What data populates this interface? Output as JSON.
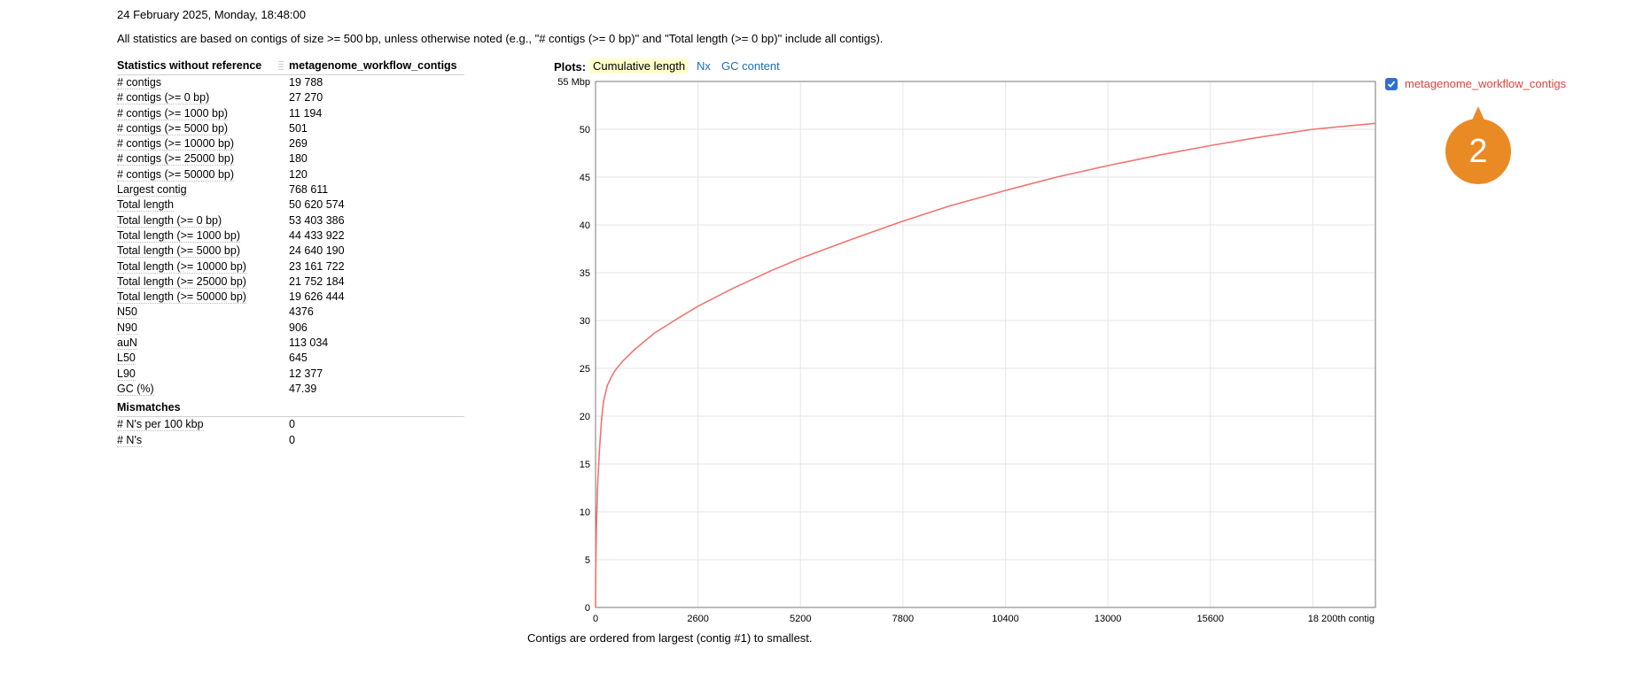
{
  "header": {
    "date": "24 February 2025, Monday, 18:48:00",
    "note": "All statistics are based on contigs of size >= 500 bp, unless otherwise noted (e.g., \"# contigs (>= 0 bp)\" and \"Total length (>= 0 bp)\" include all contigs)."
  },
  "stats": {
    "col1_header": "Statistics without reference",
    "col2_header": "metagenome_workflow_contigs",
    "rows": [
      {
        "label": "# contigs",
        "value": "19 788"
      },
      {
        "label": "# contigs (>= 0 bp)",
        "value": "27 270"
      },
      {
        "label": "# contigs (>= 1000 bp)",
        "value": "11 194"
      },
      {
        "label": "# contigs (>= 5000 bp)",
        "value": "501"
      },
      {
        "label": "# contigs (>= 10000 bp)",
        "value": "269"
      },
      {
        "label": "# contigs (>= 25000 bp)",
        "value": "180"
      },
      {
        "label": "# contigs (>= 50000 bp)",
        "value": "120"
      },
      {
        "label": "Largest contig",
        "value": "768 611"
      },
      {
        "label": "Total length",
        "value": "50 620 574"
      },
      {
        "label": "Total length (>= 0 bp)",
        "value": "53 403 386"
      },
      {
        "label": "Total length (>= 1000 bp)",
        "value": "44 433 922"
      },
      {
        "label": "Total length (>= 5000 bp)",
        "value": "24 640 190"
      },
      {
        "label": "Total length (>= 10000 bp)",
        "value": "23 161 722"
      },
      {
        "label": "Total length (>= 25000 bp)",
        "value": "21 752 184"
      },
      {
        "label": "Total length (>= 50000 bp)",
        "value": "19 626 444"
      },
      {
        "label": "N50",
        "value": "4376"
      },
      {
        "label": "N90",
        "value": "906"
      },
      {
        "label": "auN",
        "value": "113 034"
      },
      {
        "label": "L50",
        "value": "645"
      },
      {
        "label": "L90",
        "value": "12 377"
      },
      {
        "label": "GC (%)",
        "value": "47.39"
      }
    ],
    "section2_header": "Mismatches",
    "section2_rows": [
      {
        "label": "# N's per 100 kbp",
        "value": "0"
      },
      {
        "label": "# N's",
        "value": "0"
      }
    ]
  },
  "plots": {
    "label": "Plots:",
    "tabs": [
      {
        "label": "Cumulative length",
        "active": true
      },
      {
        "label": "Nx",
        "active": false
      },
      {
        "label": "GC content",
        "active": false
      }
    ]
  },
  "chart_data": {
    "type": "line",
    "title": "",
    "xlabel": "",
    "ylabel": "",
    "x_tick_labels": [
      "0",
      "2600",
      "5200",
      "7800",
      "10400",
      "13000",
      "15600",
      "18 200th contig"
    ],
    "y_tick_labels": [
      "0",
      "5",
      "10",
      "15",
      "20",
      "25",
      "30",
      "35",
      "40",
      "45",
      "50",
      "55 Mbp"
    ],
    "xlim": [
      0,
      19788
    ],
    "ylim": [
      0,
      55
    ],
    "grid": true,
    "legend_position": "top-right",
    "series": [
      {
        "name": "metagenome_workflow_contigs",
        "color": "#f07470",
        "x": [
          0,
          5,
          20,
          50,
          100,
          150,
          200,
          300,
          400,
          500,
          700,
          1000,
          1500,
          2000,
          2600,
          3500,
          4500,
          5200,
          6500,
          7800,
          9000,
          10400,
          11700,
          13000,
          14300,
          15600,
          16900,
          18200,
          19788
        ],
        "y": [
          0,
          3.5,
          8,
          12.5,
          16.5,
          19.5,
          21.5,
          23.2,
          24.1,
          24.8,
          25.8,
          27.0,
          28.7,
          30.0,
          31.5,
          33.4,
          35.3,
          36.5,
          38.5,
          40.4,
          42.0,
          43.6,
          45.0,
          46.2,
          47.3,
          48.3,
          49.2,
          50.0,
          50.62
        ]
      }
    ]
  },
  "caption": "Contigs are ordered from largest (contig #1) to smallest.",
  "legend": {
    "label": "metagenome_workflow_contigs",
    "checked": true
  },
  "badge": {
    "text": "2"
  }
}
